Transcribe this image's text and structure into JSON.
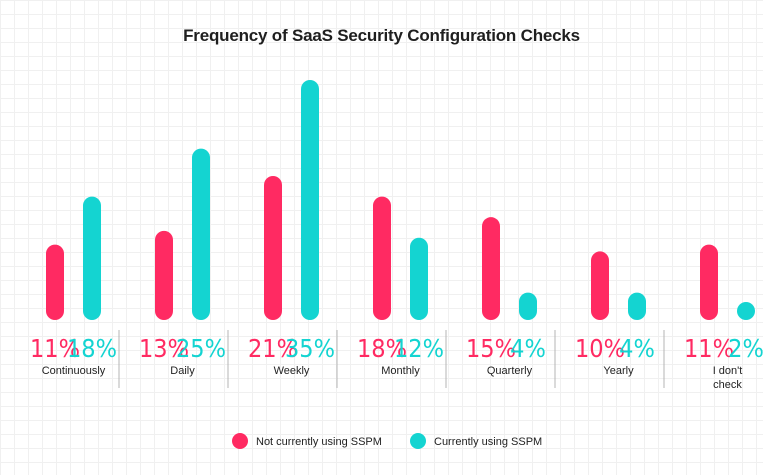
{
  "colors": {
    "not_using": "#ff2a62",
    "using": "#14d4d1",
    "divider": "#b4b4b4",
    "text": "#222222"
  },
  "chart_data": {
    "type": "bar",
    "title": "Frequency of SaaS Security Configuration Checks",
    "categories": [
      "Continuously",
      "Daily",
      "Weekly",
      "Monthly",
      "Quarterly",
      "Yearly",
      "I don't check"
    ],
    "series": [
      {
        "name": "Not currently using SSPM",
        "values": [
          11,
          13,
          21,
          18,
          15,
          10,
          11
        ]
      },
      {
        "name": "Currently using SSPM",
        "values": [
          18,
          25,
          35,
          12,
          4,
          4,
          2
        ]
      }
    ],
    "value_suffix": "%",
    "ylim": [
      0,
      35
    ],
    "xlabel": "",
    "ylabel": "",
    "grid": false,
    "legend_position": "bottom-center"
  }
}
